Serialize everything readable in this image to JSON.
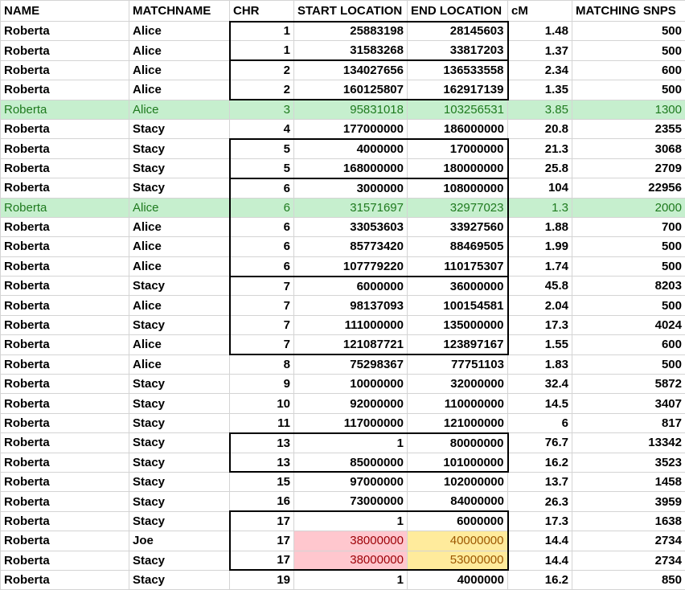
{
  "table": {
    "header": [
      "NAME",
      "MATCHNAME",
      "CHR",
      "START LOCATION",
      "END LOCATION",
      "cM",
      "MATCHING SNPS"
    ],
    "rows": [
      [
        "Roberta",
        "Alice",
        1,
        25883198,
        28145603,
        1.48,
        500
      ],
      [
        "Roberta",
        "Alice",
        1,
        31583268,
        33817203,
        1.37,
        500
      ],
      [
        "Roberta",
        "Alice",
        2,
        134027656,
        136533558,
        2.34,
        600
      ],
      [
        "Roberta",
        "Alice",
        2,
        160125807,
        162917139,
        1.35,
        500
      ],
      [
        "Roberta",
        "Alice",
        3,
        95831018,
        103256531,
        3.85,
        1300
      ],
      [
        "Roberta",
        "Stacy",
        4,
        177000000,
        186000000,
        20.8,
        2355
      ],
      [
        "Roberta",
        "Stacy",
        5,
        4000000,
        17000000,
        21.3,
        3068
      ],
      [
        "Roberta",
        "Stacy",
        5,
        168000000,
        180000000,
        25.8,
        2709
      ],
      [
        "Roberta",
        "Stacy",
        6,
        3000000,
        108000000,
        104,
        22956
      ],
      [
        "Roberta",
        "Alice",
        6,
        31571697,
        32977023,
        1.3,
        2000
      ],
      [
        "Roberta",
        "Alice",
        6,
        33053603,
        33927560,
        1.88,
        700
      ],
      [
        "Roberta",
        "Alice",
        6,
        85773420,
        88469505,
        1.99,
        500
      ],
      [
        "Roberta",
        "Alice",
        6,
        107779220,
        110175307,
        1.74,
        500
      ],
      [
        "Roberta",
        "Stacy",
        7,
        6000000,
        36000000,
        45.8,
        8203
      ],
      [
        "Roberta",
        "Alice",
        7,
        98137093,
        100154581,
        2.04,
        500
      ],
      [
        "Roberta",
        "Stacy",
        7,
        111000000,
        135000000,
        17.3,
        4024
      ],
      [
        "Roberta",
        "Alice",
        7,
        121087721,
        123897167,
        1.55,
        600
      ],
      [
        "Roberta",
        "Alice",
        8,
        75298367,
        77751103,
        1.83,
        500
      ],
      [
        "Roberta",
        "Stacy",
        9,
        10000000,
        32000000,
        32.4,
        5872
      ],
      [
        "Roberta",
        "Stacy",
        10,
        92000000,
        110000000,
        14.5,
        3407
      ],
      [
        "Roberta",
        "Stacy",
        11,
        117000000,
        121000000,
        6,
        817
      ],
      [
        "Roberta",
        "Stacy",
        13,
        1,
        80000000,
        76.7,
        13342
      ],
      [
        "Roberta",
        "Stacy",
        13,
        85000000,
        101000000,
        16.2,
        3523
      ],
      [
        "Roberta",
        "Stacy",
        15,
        97000000,
        102000000,
        13.7,
        1458
      ],
      [
        "Roberta",
        "Stacy",
        16,
        73000000,
        84000000,
        26.3,
        3959
      ],
      [
        "Roberta",
        "Stacy",
        17,
        1,
        6000000,
        17.3,
        1638
      ],
      [
        "Roberta",
        "Joe",
        17,
        38000000,
        40000000,
        14.4,
        2734
      ],
      [
        "Roberta",
        "Stacy",
        17,
        38000000,
        53000000,
        14.4,
        2734
      ],
      [
        "Roberta",
        "Stacy",
        19,
        1,
        4000000,
        16.2,
        850
      ]
    ]
  }
}
